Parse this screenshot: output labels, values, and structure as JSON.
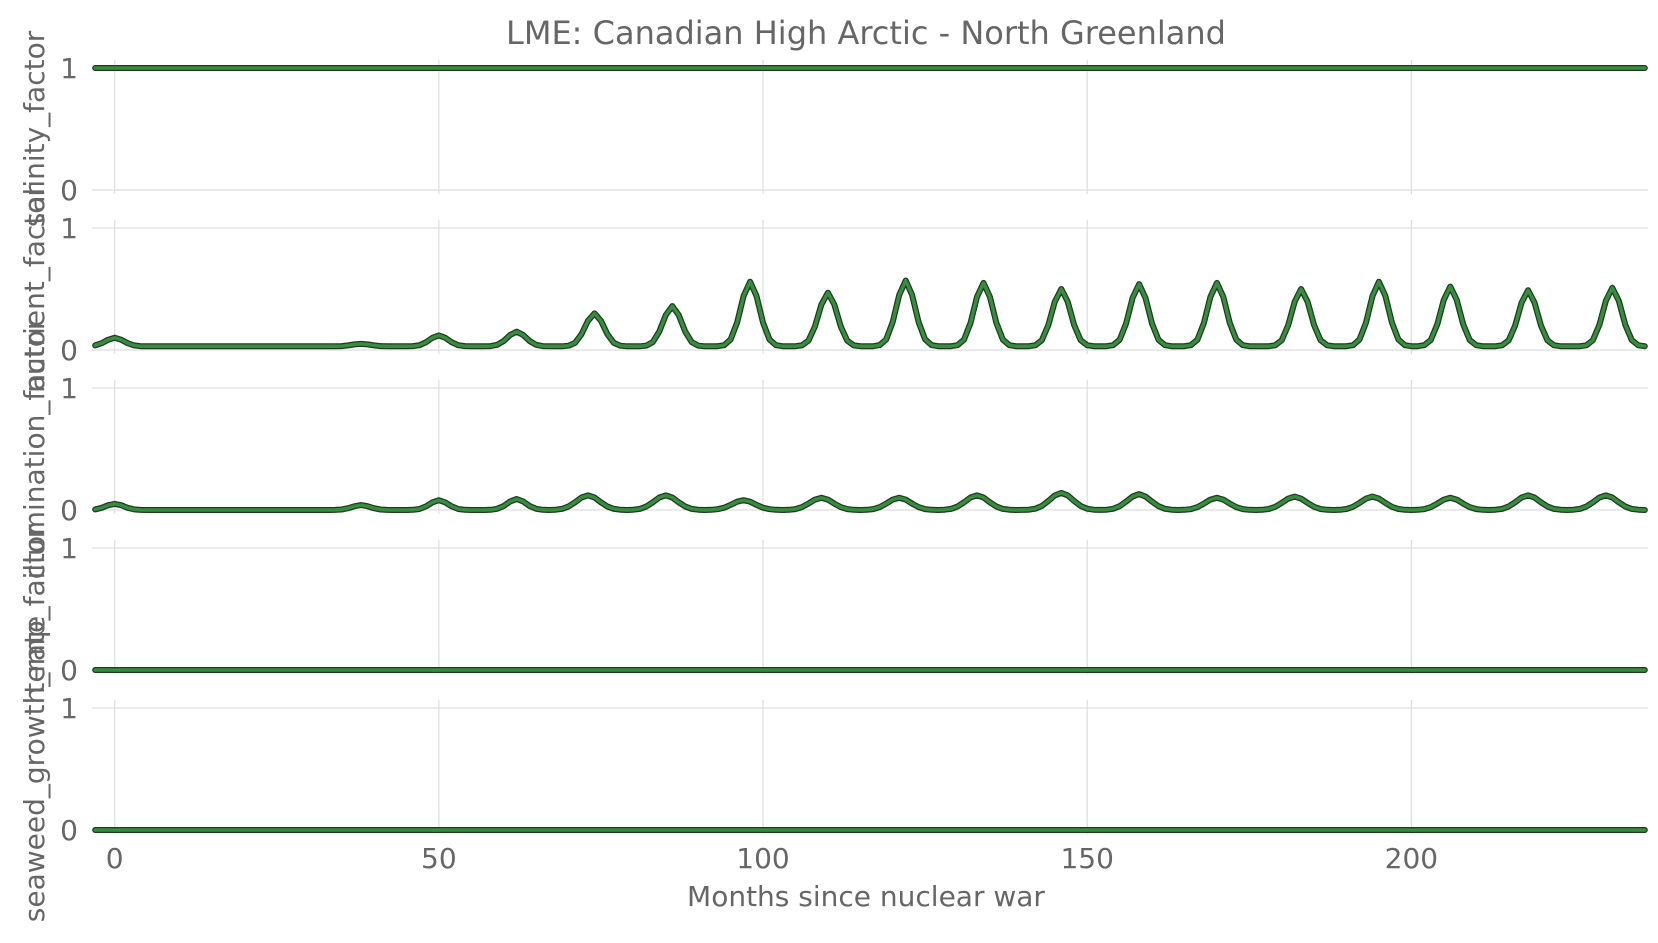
{
  "chart_data": {
    "type": "line",
    "title": "LME: Canadian High Arctic - North Greenland",
    "xlabel": "Months since nuclear war",
    "xlim": [
      -3.5,
      236.5
    ],
    "x_ticks": [
      0,
      50,
      100,
      150,
      200
    ],
    "x_start": -3,
    "x_step": 1,
    "grid": true,
    "line_color": "#3a8a41",
    "outline_color": "#1a3d1d",
    "panels": [
      {
        "ylabel": "salinity_factor",
        "ylim": [
          0,
          1
        ],
        "y_ticks": [
          0,
          1
        ],
        "constant": 1
      },
      {
        "ylabel": "nutrient_factor",
        "ylim": [
          0,
          1
        ],
        "y_ticks": [
          0,
          1
        ],
        "baseline": 0.03,
        "peaks": [
          {
            "x": 0,
            "v": 0.1,
            "w": 2
          },
          {
            "x": 38,
            "v": 0.05,
            "w": 2
          },
          {
            "x": 50,
            "v": 0.12,
            "w": 2
          },
          {
            "x": 62,
            "v": 0.15,
            "w": 2
          },
          {
            "x": 74,
            "v": 0.3,
            "w": 2
          },
          {
            "x": 86,
            "v": 0.36,
            "w": 2
          },
          {
            "x": 98,
            "v": 0.56,
            "w": 2
          },
          {
            "x": 110,
            "v": 0.47,
            "w": 2
          },
          {
            "x": 122,
            "v": 0.57,
            "w": 2
          },
          {
            "x": 134,
            "v": 0.55,
            "w": 2
          },
          {
            "x": 146,
            "v": 0.5,
            "w": 2
          },
          {
            "x": 158,
            "v": 0.54,
            "w": 2
          },
          {
            "x": 170,
            "v": 0.55,
            "w": 2
          },
          {
            "x": 183,
            "v": 0.5,
            "w": 2
          },
          {
            "x": 195,
            "v": 0.56,
            "w": 2
          },
          {
            "x": 206,
            "v": 0.52,
            "w": 2
          },
          {
            "x": 218,
            "v": 0.49,
            "w": 2
          },
          {
            "x": 231,
            "v": 0.51,
            "w": 2
          }
        ]
      },
      {
        "ylabel": "illumination_factor",
        "ylim": [
          0,
          1
        ],
        "y_ticks": [
          0,
          1
        ],
        "baseline": 0.0,
        "peaks": [
          {
            "x": 0,
            "v": 0.05,
            "w": 2
          },
          {
            "x": 38,
            "v": 0.04,
            "w": 2
          },
          {
            "x": 50,
            "v": 0.08,
            "w": 2
          },
          {
            "x": 62,
            "v": 0.09,
            "w": 2
          },
          {
            "x": 73,
            "v": 0.12,
            "w": 2.5
          },
          {
            "x": 85,
            "v": 0.12,
            "w": 2.5
          },
          {
            "x": 97,
            "v": 0.08,
            "w": 2.5
          },
          {
            "x": 109,
            "v": 0.1,
            "w": 2.5
          },
          {
            "x": 121,
            "v": 0.1,
            "w": 2.5
          },
          {
            "x": 133,
            "v": 0.12,
            "w": 2.5
          },
          {
            "x": 146,
            "v": 0.14,
            "w": 2.5
          },
          {
            "x": 158,
            "v": 0.13,
            "w": 2.5
          },
          {
            "x": 170,
            "v": 0.1,
            "w": 2.5
          },
          {
            "x": 182,
            "v": 0.11,
            "w": 2.5
          },
          {
            "x": 194,
            "v": 0.11,
            "w": 2.5
          },
          {
            "x": 206,
            "v": 0.1,
            "w": 2.5
          },
          {
            "x": 218,
            "v": 0.12,
            "w": 2.5
          },
          {
            "x": 230,
            "v": 0.12,
            "w": 2.5
          }
        ]
      },
      {
        "ylabel": "temp_factor",
        "ylim": [
          0,
          1
        ],
        "y_ticks": [
          0,
          1
        ],
        "constant": 0
      },
      {
        "ylabel": "seaweed_growth_rate",
        "ylim": [
          0,
          1
        ],
        "y_ticks": [
          0,
          1
        ],
        "constant": 0
      }
    ]
  }
}
